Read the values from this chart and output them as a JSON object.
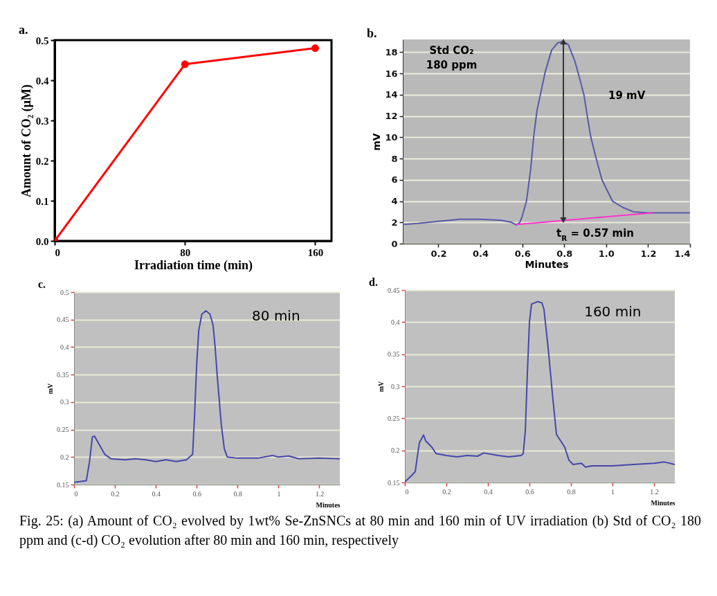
{
  "chart_data": [
    {
      "type": "line",
      "title": "a.",
      "xlabel": "Irradiation time (min)",
      "ylabel": "Amount of CO₂ (μM)",
      "x": [
        0,
        80,
        160
      ],
      "series": [
        {
          "color": "#ff0000",
          "values": [
            0,
            0.44,
            0.48
          ]
        }
      ],
      "xlim": [
        0,
        170
      ],
      "xticks": [
        0,
        80,
        160
      ],
      "ylim": [
        0,
        0.5
      ],
      "yticks": [
        {
          "value": 0,
          "label": "0.0"
        },
        0.1,
        0.2,
        0.3,
        0.4,
        0.5
      ],
      "marker": "circle"
    },
    {
      "type": "line",
      "title": "b.",
      "xlabel": "Minutes",
      "ylabel": "mV",
      "series": [
        {
          "color": "#5858a8",
          "x": [
            0.03,
            0.1,
            0.2,
            0.3,
            0.4,
            0.5,
            0.55,
            0.572,
            0.588,
            0.6,
            0.62,
            0.64,
            0.654,
            0.67,
            0.686,
            0.71,
            0.74,
            0.77,
            0.796,
            0.82,
            0.85,
            0.87,
            0.894,
            0.91,
            0.927,
            0.95,
            0.98,
            1.03,
            1.08,
            1.13,
            1.2,
            1.3,
            1.4
          ],
          "values": [
            1.8,
            1.9,
            2.1,
            2.3,
            2.3,
            2.2,
            2.0,
            1.75,
            2.0,
            2.6,
            4.0,
            7.0,
            10.0,
            12.5,
            14.0,
            16.2,
            18.2,
            18.9,
            19.0,
            18.7,
            17.2,
            15.8,
            14.0,
            12.0,
            10.0,
            8.2,
            6.0,
            4.0,
            3.4,
            3.0,
            2.9,
            2.9,
            2.9
          ]
        },
        {
          "color": "#ff33cc",
          "x": [
            0.57,
            1.22
          ],
          "values": [
            1.8,
            2.9
          ]
        },
        {
          "color": "#333333",
          "x": [
            0.796,
            0.796
          ],
          "values": [
            2.2,
            19.0
          ],
          "marker": "triangle"
        }
      ],
      "xlim": [
        0.03,
        1.4
      ],
      "xticks": [
        0.2,
        0.4,
        0.6,
        0.8,
        {
          "value": 1,
          "label": "1.0"
        },
        1.2,
        1.4
      ],
      "ylim": [
        0,
        19.2
      ],
      "yticks": [
        0,
        2,
        4,
        6,
        8,
        10,
        12,
        14,
        16,
        18
      ],
      "grid": "y",
      "annotations": [
        "Std CO₂\n180 ppm",
        "19 mV",
        "t$_{R}$ = 0.57 min"
      ]
    },
    {
      "type": "line",
      "title": "c.",
      "xlabel": "Minutes",
      "ylabel": "mV",
      "series": [
        {
          "color": "#4646aa",
          "x": [
            0,
            0.06,
            0.075,
            0.09,
            0.1,
            0.12,
            0.15,
            0.18,
            0.25,
            0.3,
            0.35,
            0.4,
            0.45,
            0.5,
            0.55,
            0.58,
            0.59,
            0.6,
            0.61,
            0.625,
            0.645,
            0.665,
            0.68,
            0.69,
            0.7,
            0.72,
            0.735,
            0.75,
            0.8,
            0.9,
            0.97,
            1.0,
            1.05,
            1.1,
            1.2,
            1.3
          ],
          "values": [
            0.154,
            0.157,
            0.19,
            0.237,
            0.238,
            0.225,
            0.205,
            0.197,
            0.195,
            0.197,
            0.195,
            0.192,
            0.195,
            0.192,
            0.195,
            0.205,
            0.28,
            0.37,
            0.43,
            0.46,
            0.466,
            0.46,
            0.44,
            0.4,
            0.35,
            0.26,
            0.215,
            0.2,
            0.198,
            0.198,
            0.203,
            0.2,
            0.202,
            0.197,
            0.198,
            0.197
          ]
        }
      ],
      "xlim": [
        0,
        1.3
      ],
      "xticks": [
        0,
        0.2,
        0.4,
        0.6,
        0.8,
        1,
        1.2
      ],
      "ylim": [
        0.15,
        0.5
      ],
      "yticks": [
        0.15,
        0.2,
        0.25,
        0.3,
        0.35,
        0.4,
        0.45,
        0.5
      ],
      "grid": "y",
      "annotations": [
        "80 min"
      ]
    },
    {
      "type": "line",
      "title": "d.",
      "xlabel": "Minutes",
      "ylabel": "mV",
      "series": [
        {
          "color": "#4646aa",
          "x": [
            0,
            0.03,
            0.05,
            0.06,
            0.07,
            0.09,
            0.1,
            0.13,
            0.15,
            0.2,
            0.25,
            0.3,
            0.35,
            0.38,
            0.45,
            0.5,
            0.56,
            0.57,
            0.58,
            0.59,
            0.6,
            0.61,
            0.64,
            0.66,
            0.67,
            0.69,
            0.71,
            0.73,
            0.75,
            0.77,
            0.79,
            0.81,
            0.85,
            0.87,
            0.9,
            1.0,
            1.1,
            1.2,
            1.25,
            1.3
          ],
          "values": [
            0.151,
            0.16,
            0.167,
            0.19,
            0.212,
            0.224,
            0.215,
            0.205,
            0.195,
            0.192,
            0.19,
            0.192,
            0.191,
            0.196,
            0.192,
            0.19,
            0.192,
            0.195,
            0.23,
            0.32,
            0.4,
            0.428,
            0.432,
            0.43,
            0.42,
            0.36,
            0.29,
            0.225,
            0.215,
            0.205,
            0.185,
            0.178,
            0.18,
            0.174,
            0.176,
            0.176,
            0.178,
            0.18,
            0.182,
            0.178
          ]
        }
      ],
      "xlim": [
        0,
        1.3
      ],
      "xticks": [
        0,
        0.2,
        0.4,
        0.6,
        0.8,
        1,
        1.2
      ],
      "ylim": [
        0.15,
        0.45
      ],
      "yticks": [
        0.15,
        0.2,
        0.25,
        0.3,
        0.35,
        0.4,
        0.45
      ],
      "grid": "y",
      "annotations": [
        "160 min",
        "Fig. 25: (a) Amount of CO₂ evolved by 1wt% Se-ZnSNCs at 80 min and 160 min of UV irradiation (b) Std of CO₂ 180 ppm and (c-d) CO₂ evolution after 80 min and 160 min, respectively"
      ]
    }
  ]
}
